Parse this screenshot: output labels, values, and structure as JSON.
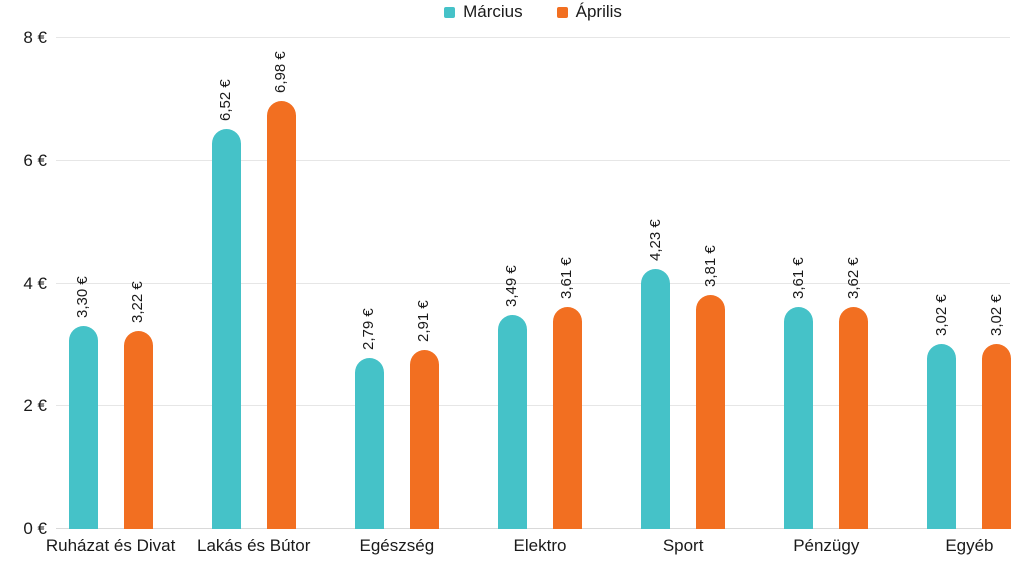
{
  "chart_data": {
    "type": "bar",
    "title": "",
    "categories": [
      "Ruházat és Divat",
      "Lakás és Bútor",
      "Egészség",
      "Elektro",
      "Sport",
      "Pénzügy",
      "Egyéb"
    ],
    "series": [
      {
        "name": "Március",
        "color": "#45c2c8",
        "values": [
          3.3,
          6.52,
          2.79,
          3.49,
          4.23,
          3.61,
          3.02
        ],
        "labels": [
          "3,30 €",
          "6,52 €",
          "2,79 €",
          "3,49 €",
          "4,23 €",
          "3,61 €",
          "3,02 €"
        ]
      },
      {
        "name": "Április",
        "color": "#f26f21",
        "values": [
          3.22,
          6.98,
          2.91,
          3.61,
          3.81,
          3.62,
          3.02
        ],
        "labels": [
          "3,22 €",
          "6,98 €",
          "2,91 €",
          "3,61 €",
          "3,81 €",
          "3,62 €",
          "3,02 €"
        ]
      }
    ],
    "xlabel": "",
    "ylabel": "",
    "ylim": [
      0,
      8
    ],
    "yticks": [
      {
        "value": 0,
        "label": "0 €"
      },
      {
        "value": 2,
        "label": "2 €"
      },
      {
        "value": 4,
        "label": "4 €"
      },
      {
        "value": 6,
        "label": "6 €"
      },
      {
        "value": 8,
        "label": "8 €"
      }
    ],
    "grid": true,
    "legend_position": "top-center"
  },
  "colors": {
    "gridline": "#e6e6e6",
    "axis_line": "#d9d9d9",
    "text": "#1a1a1a"
  }
}
